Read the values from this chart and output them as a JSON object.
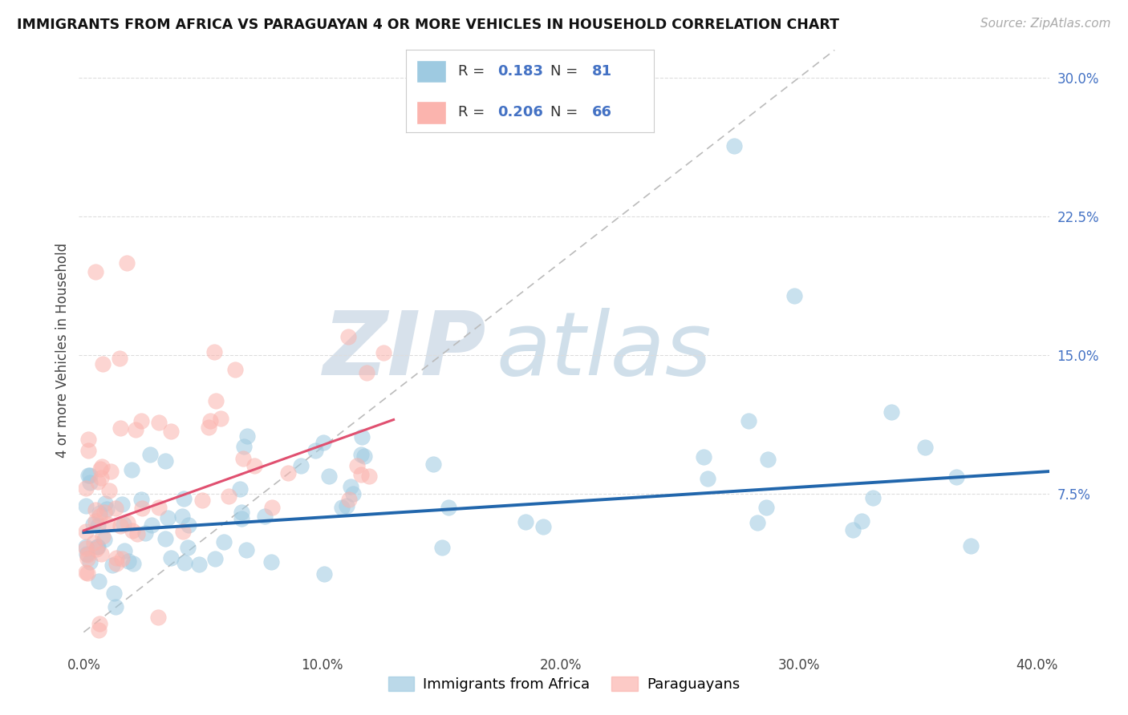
{
  "title": "IMMIGRANTS FROM AFRICA VS PARAGUAYAN 4 OR MORE VEHICLES IN HOUSEHOLD CORRELATION CHART",
  "source": "Source: ZipAtlas.com",
  "ylabel": "4 or more Vehicles in Household",
  "right_ytick_labels": [
    "30.0%",
    "22.5%",
    "15.0%",
    "7.5%"
  ],
  "right_ytick_values": [
    0.3,
    0.225,
    0.15,
    0.075
  ],
  "xlim": [
    -0.002,
    0.405
  ],
  "ylim": [
    -0.01,
    0.315
  ],
  "xtick_labels": [
    "0.0%",
    "10.0%",
    "20.0%",
    "30.0%",
    "40.0%"
  ],
  "xtick_values": [
    0.0,
    0.1,
    0.2,
    0.3,
    0.4
  ],
  "legend_label1": "Immigrants from Africa",
  "legend_label2": "Paraguayans",
  "R1": "0.183",
  "N1": "81",
  "R2": "0.206",
  "N2": "66",
  "color_blue": "#9ecae1",
  "color_pink": "#fbb4ae",
  "color_blue_line": "#2166ac",
  "color_pink_line": "#e05070",
  "color_ref_line": "#bbbbbb",
  "watermark_zip": "ZIP",
  "watermark_atlas": "atlas",
  "blue_line_x": [
    0.0,
    0.405
  ],
  "blue_line_y": [
    0.054,
    0.087
  ],
  "pink_line_x": [
    0.0,
    0.13
  ],
  "pink_line_y": [
    0.055,
    0.115
  ],
  "ref_line_x": [
    0.0,
    0.315
  ],
  "ref_line_y": [
    0.0,
    0.315
  ]
}
